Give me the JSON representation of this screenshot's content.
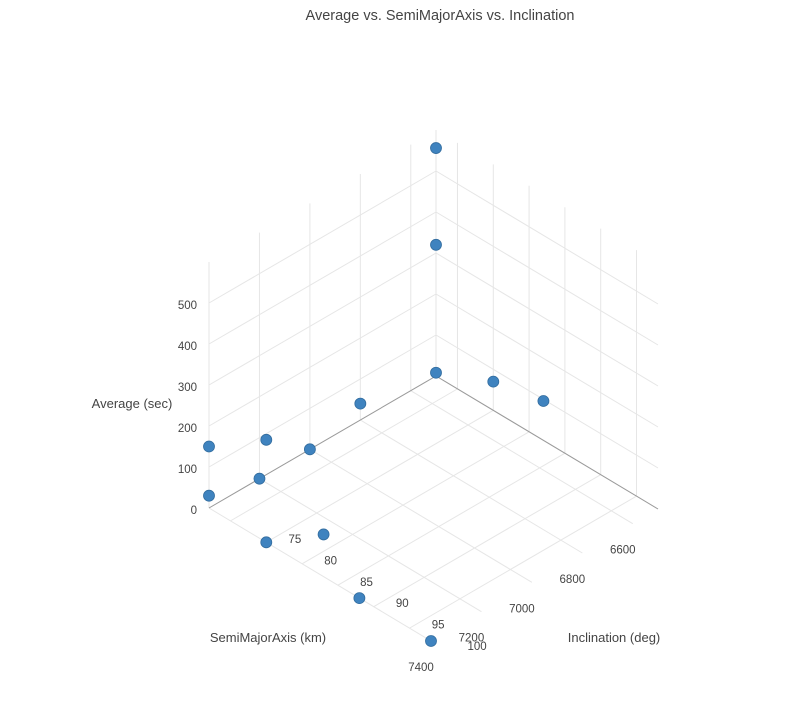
{
  "chart_data": {
    "type": "scatter3d",
    "title": "Average vs. SemiMajorAxis vs. Inclination",
    "x_axis": {
      "label": "SemiMajorAxis (km)",
      "range": [
        6500,
        7400
      ],
      "ticks": [
        6600,
        6800,
        7000,
        7200,
        7400
      ]
    },
    "y_axis": {
      "label": "Inclination (deg)",
      "range": [
        72,
        103
      ],
      "ticks": [
        75,
        80,
        85,
        90,
        95,
        100
      ]
    },
    "z_axis": {
      "label": "Average (sec)",
      "range": [
        0,
        600
      ],
      "ticks": [
        0,
        100,
        200,
        300,
        400,
        500
      ]
    },
    "marker_color": "#3f83bf",
    "points": [
      {
        "x": 6500,
        "y": 72,
        "z": 320
      },
      {
        "x": 6500,
        "y": 72,
        "z": 556
      },
      {
        "x": 6500,
        "y": 72,
        "z": 8
      },
      {
        "x": 6500,
        "y": 80,
        "z": 70
      },
      {
        "x": 6500,
        "y": 87,
        "z": 96
      },
      {
        "x": 7400,
        "y": 72,
        "z": 150
      },
      {
        "x": 7400,
        "y": 72,
        "z": 30
      },
      {
        "x": 7400,
        "y": 80,
        "z": 250
      },
      {
        "x": 7400,
        "y": 88,
        "z": 103
      },
      {
        "x": 6800,
        "y": 72,
        "z": 40
      },
      {
        "x": 7400,
        "y": 103,
        "z": 0
      },
      {
        "x": 7000,
        "y": 72,
        "z": 0
      },
      {
        "x": 7200,
        "y": 72,
        "z": 0
      },
      {
        "x": 7400,
        "y": 80,
        "z": 0
      },
      {
        "x": 7400,
        "y": 93,
        "z": 0
      }
    ]
  }
}
